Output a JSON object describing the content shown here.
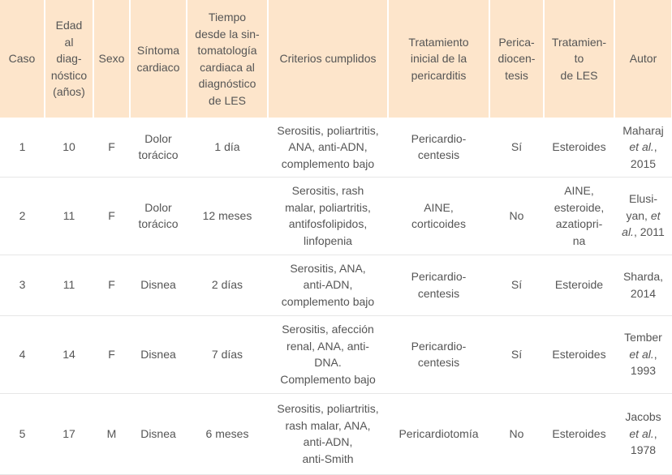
{
  "table": {
    "header": [
      "Caso",
      "Edad\nal\ndiag-\nnóstico\n(años)",
      "Sexo",
      "Síntoma\ncardiaco",
      "Tiempo\ndesde la sin-\ntomatología\ncardiaca al\ndiagnóstico\nde LES",
      "Criterios cumplidos",
      "Tratamiento\ninicial de la\npericarditis",
      "Perica-\ndiocen-\ntesis",
      "Tratamien-\nto\nde LES",
      "Autor"
    ],
    "rows": [
      [
        "1",
        "10",
        "F",
        "Dolor\ntorácico",
        "1 día",
        "Serositis, poliartritis,\nANA, anti-ADN,\ncomplemento bajo",
        "Pericardio-\ncentesis",
        "Sí",
        "Esteroides",
        {
          "parts": [
            "Maharaj\n",
            "et al.",
            ",\n2015"
          ]
        }
      ],
      [
        "2",
        "11",
        "F",
        "Dolor\ntorácico",
        "12 meses",
        "Serositis, rash\nmalar, poliartritis,\nantifosfolipidos,\nlinfopenia",
        "AINE,\ncorticoides",
        "No",
        "AINE,\nesteroide,\nazatiopri-\nna",
        {
          "parts": [
            "Elusi-\nyan, ",
            "et\nal.",
            ", 2011"
          ]
        }
      ],
      [
        "3",
        "11",
        "F",
        "Disnea",
        "2 días",
        "Serositis, ANA,\nanti-ADN,\ncomplemento bajo",
        "Pericardio-\ncentesis",
        "Sí",
        "Esteroide",
        {
          "parts": [
            "Sharda,\n2014"
          ]
        }
      ],
      [
        "4",
        "14",
        "F",
        "Disnea",
        "7 días",
        "Serositis, afección\nrenal, ANA, anti-\nDNA.\nComplemento bajo",
        "Pericardio-\ncentesis",
        "Sí",
        "Esteroides",
        {
          "parts": [
            "Tember\n",
            "et al.",
            ",\n1993"
          ]
        }
      ],
      [
        "5",
        "17",
        "M",
        "Disnea",
        "6 meses",
        "Serositis, poliartritis,\nrash malar, ANA,\nanti-ADN,\nanti-Smith",
        "Pericardiotomía",
        "No",
        "Esteroides",
        {
          "parts": [
            "Jacobs\n",
            "et al.",
            ",\n1978"
          ]
        }
      ]
    ]
  }
}
